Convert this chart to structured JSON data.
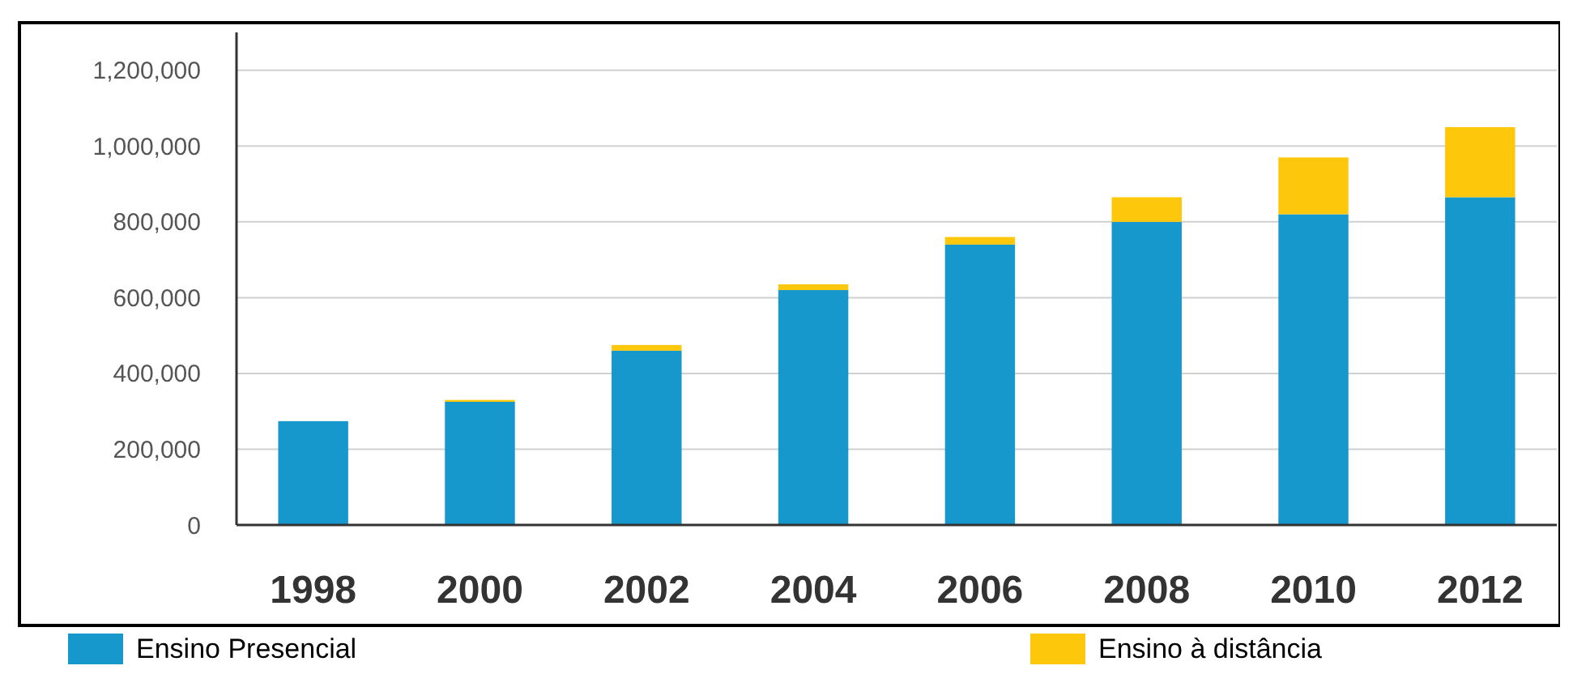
{
  "chart_data": {
    "type": "bar",
    "stacked": true,
    "categories": [
      "1998",
      "2000",
      "2002",
      "2004",
      "2006",
      "2008",
      "2010",
      "2012"
    ],
    "series": [
      {
        "name": "Ensino Presencial",
        "color": "#1798cc",
        "values": [
          274000,
          325000,
          460000,
          620000,
          740000,
          800000,
          820000,
          865000
        ]
      },
      {
        "name": "Ensino à distância",
        "color": "#fdc70c",
        "values": [
          0,
          5000,
          15000,
          15000,
          20000,
          65000,
          150000,
          185000
        ]
      }
    ],
    "ylim": [
      0,
      1300000
    ],
    "yticks": [
      {
        "value": 0,
        "label": "0"
      },
      {
        "value": 200000,
        "label": "200,000"
      },
      {
        "value": 400000,
        "label": "400,000"
      },
      {
        "value": 600000,
        "label": "600,000"
      },
      {
        "value": 800000,
        "label": "800,000"
      },
      {
        "value": 1000000,
        "label": "1,000,000"
      },
      {
        "value": 1200000,
        "label": "1,200,000"
      }
    ],
    "grid": "y",
    "legend": "bottom"
  }
}
